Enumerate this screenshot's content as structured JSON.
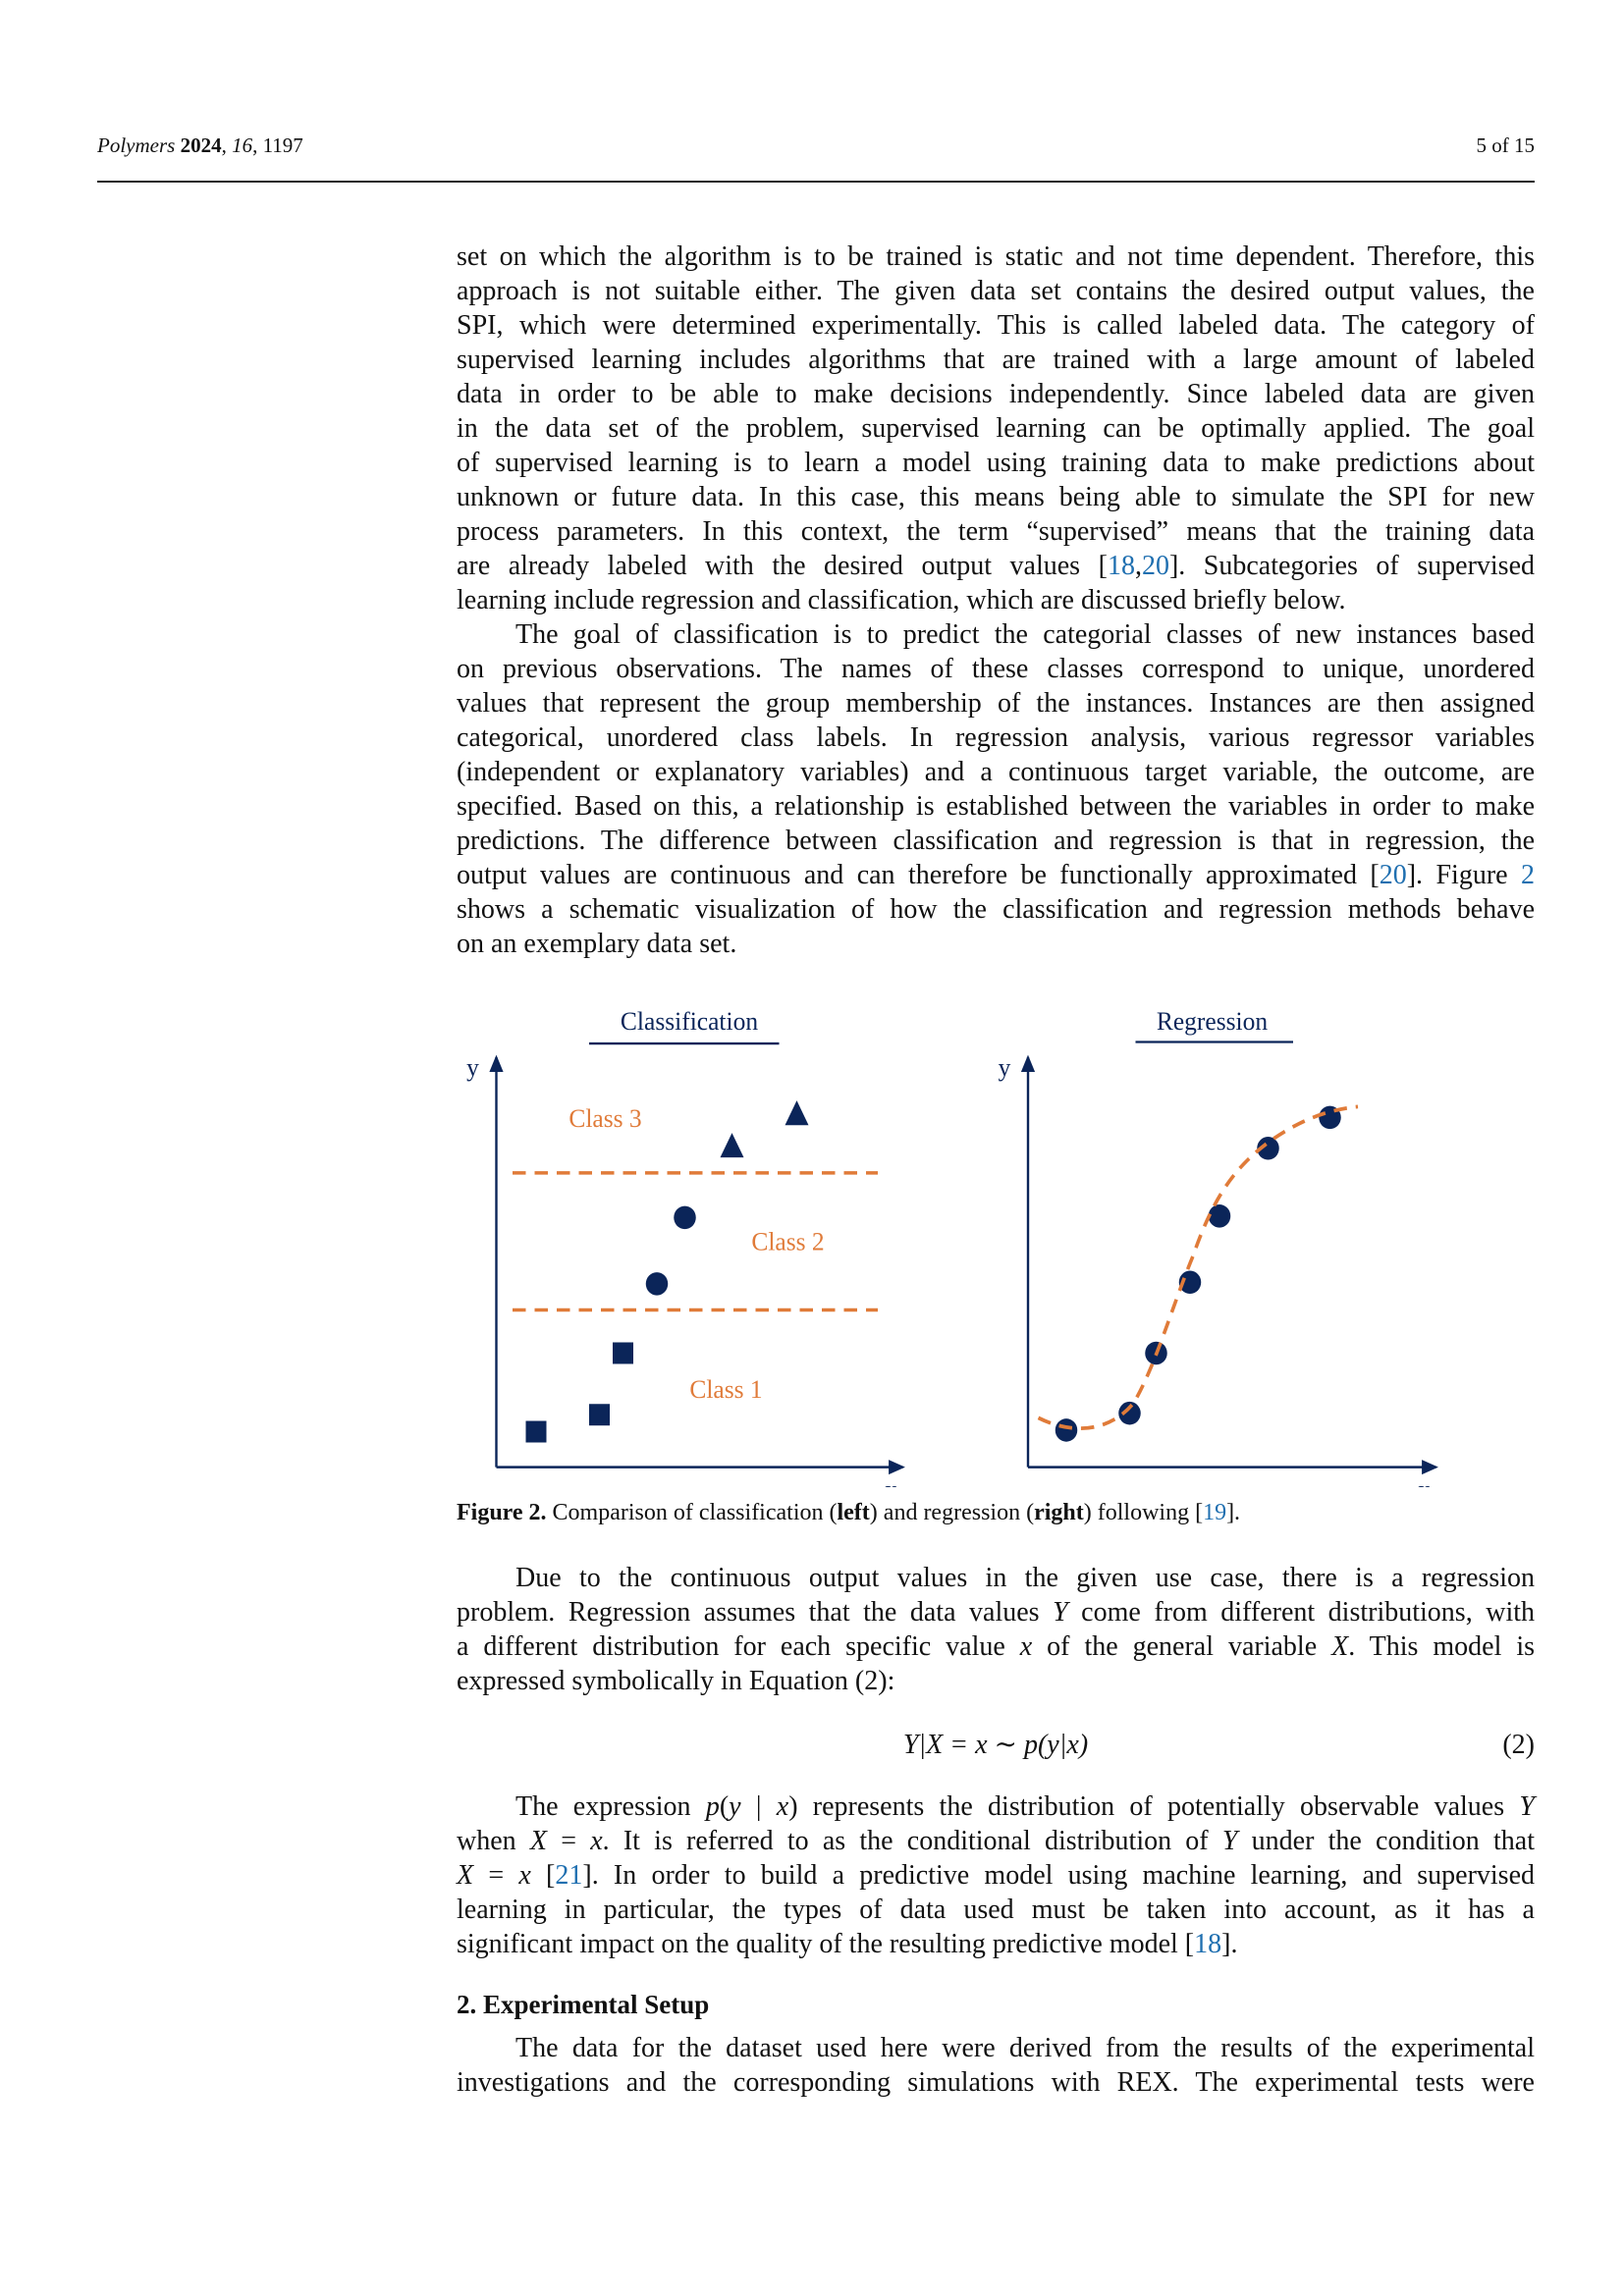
{
  "header": {
    "journal": "Polymers",
    "year": "2024",
    "volume": "16",
    "article": "1197",
    "page": "5 of 15"
  },
  "colors": {
    "navy": "#0b2559",
    "orange": "#e07b39",
    "link": "#1f6fb0"
  },
  "paragraphs": [
    {
      "lines": [
        [
          {
            "t": "set on which the algorithm is to be trained is static and not time dependent. Therefore, this"
          }
        ],
        [
          {
            "t": "approach is not suitable either. The given data set contains the desired output values, the"
          }
        ],
        [
          {
            "t": "SPI, which were determined experimentally. This is called labeled data. The category of"
          }
        ],
        [
          {
            "t": "supervised learning includes algorithms that are trained with a large amount of labeled"
          }
        ],
        [
          {
            "t": "data in order to be able to make decisions independently. Since labeled data are given"
          }
        ],
        [
          {
            "t": "in the data set of the problem, supervised learning can be optimally applied. The goal"
          }
        ],
        [
          {
            "t": "of supervised learning is to learn a model using training data to make predictions about"
          }
        ],
        [
          {
            "t": "unknown or future data. In this case, this means being able to simulate the SPI for new"
          }
        ],
        [
          {
            "t": "process parameters. In this context, the term “supervised” means that the training data"
          }
        ],
        [
          {
            "t": "are already labeled with the desired output values ["
          },
          {
            "t": "18",
            "s": "link"
          },
          {
            "t": ","
          },
          {
            "t": "20",
            "s": "link"
          },
          {
            "t": "]. Subcategories of supervised"
          }
        ],
        [
          {
            "t": "learning include regression and classification, which are discussed briefly below."
          }
        ]
      ]
    },
    {
      "lines": [
        [
          {
            "t": "The goal of classification is to predict the categorial classes of new instances based"
          }
        ],
        [
          {
            "t": "on previous observations. The names of these classes correspond to unique, unordered"
          }
        ],
        [
          {
            "t": "values that represent the group membership of the instances. Instances are then assigned"
          }
        ],
        [
          {
            "t": "categorical, unordered class labels. In regression analysis, various regressor variables"
          }
        ],
        [
          {
            "t": "(independent or explanatory variables) and a continuous target variable, the outcome, are"
          }
        ],
        [
          {
            "t": "specified. Based on this, a relationship is established between the variables in order to make"
          }
        ],
        [
          {
            "t": "predictions. The difference between classification and regression is that in regression, the"
          }
        ],
        [
          {
            "t": "output values are continuous and can therefore be functionally approximated ["
          },
          {
            "t": "20",
            "s": "link"
          },
          {
            "t": "]. Figure "
          },
          {
            "t": "2",
            "s": "link"
          }
        ],
        [
          {
            "t": "shows a schematic visualization of how the classification and regression methods behave"
          }
        ],
        [
          {
            "t": "on an exemplary data set."
          }
        ]
      ]
    },
    {
      "lines": [
        [
          {
            "t": "Due to the continuous output values in the given use case, there is a regression"
          }
        ],
        [
          {
            "t": "problem. Regression assumes that the data values "
          },
          {
            "t": "Y",
            "s": "i"
          },
          {
            "t": " come from different distributions, with"
          }
        ],
        [
          {
            "t": "a different distribution for each specific value "
          },
          {
            "t": "x",
            "s": "i"
          },
          {
            "t": " of the general variable "
          },
          {
            "t": "X",
            "s": "i"
          },
          {
            "t": ". This model is"
          }
        ],
        [
          {
            "t": "expressed symbolically in Equation (2):"
          }
        ]
      ]
    },
    {
      "lines": [
        [
          {
            "t": "The expression "
          },
          {
            "t": "p",
            "s": "i"
          },
          {
            "t": "("
          },
          {
            "t": "y",
            "s": "i"
          },
          {
            "t": " | "
          },
          {
            "t": "x",
            "s": "i"
          },
          {
            "t": ") represents the distribution of potentially observable values "
          },
          {
            "t": "Y",
            "s": "i"
          }
        ],
        [
          {
            "t": "when "
          },
          {
            "t": "X",
            "s": "i"
          },
          {
            "t": " = "
          },
          {
            "t": "x",
            "s": "i"
          },
          {
            "t": ". It is referred to as the conditional distribution of "
          },
          {
            "t": "Y",
            "s": "i"
          },
          {
            "t": " under the condition that"
          }
        ],
        [
          {
            "t": "X",
            "s": "i"
          },
          {
            "t": " = "
          },
          {
            "t": "x",
            "s": "i"
          },
          {
            "t": " ["
          },
          {
            "t": "21",
            "s": "link"
          },
          {
            "t": "]. In order to build a predictive model using machine learning, and supervised"
          }
        ],
        [
          {
            "t": "learning in particular, the types of data used must be taken into account, as it has a"
          }
        ],
        [
          {
            "t": "significant impact on the quality of the resulting predictive model ["
          },
          {
            "t": "18",
            "s": "link"
          },
          {
            "t": "]."
          }
        ]
      ]
    },
    {
      "lines": [
        [
          {
            "t": "The data for the dataset used here were derived from the results of the experimental"
          }
        ],
        [
          {
            "t": "investigations and the corresponding simulations with REX. The experimental tests were"
          }
        ]
      ]
    }
  ],
  "figure": {
    "left_title": "Classification",
    "right_title": "Regression",
    "axis_x": "x",
    "axis_y": "y",
    "class_labels": [
      "Class 3",
      "Class 2",
      "Class 1"
    ],
    "caption": [
      {
        "t": "Figure 2.",
        "s": "b"
      },
      {
        "t": " Comparison of classification ("
      },
      {
        "t": "left",
        "s": "b"
      },
      {
        "t": ") and regression ("
      },
      {
        "t": "right",
        "s": "b"
      },
      {
        "t": ") following ["
      },
      {
        "t": "19",
        "s": "link"
      },
      {
        "t": "]."
      }
    ]
  },
  "equation": {
    "body": "Y|X = x ∼ p(y|x)",
    "number": "(2)"
  },
  "section_heading": "2. Experimental Setup"
}
